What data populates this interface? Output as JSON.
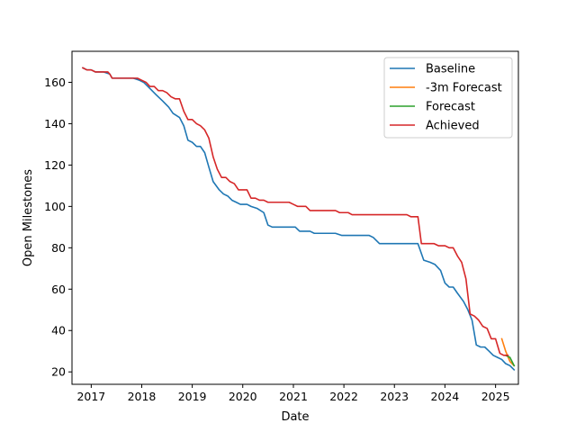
{
  "chart_data": {
    "type": "line",
    "xlabel": "Date",
    "ylabel": "Open Milestones",
    "xlim": [
      "2016-08-15",
      "2025-06-15"
    ],
    "ylim": [
      14,
      175
    ],
    "x_ticks": [
      "2017",
      "2018",
      "2019",
      "2020",
      "2021",
      "2022",
      "2023",
      "2024",
      "2025"
    ],
    "y_ticks": [
      20,
      40,
      60,
      80,
      100,
      120,
      140,
      160
    ],
    "grid": false,
    "legend_position": "top-right",
    "series": [
      {
        "name": "Baseline",
        "color": "#1f77b4",
        "points": [
          [
            "2016-11-01",
            167
          ],
          [
            "2016-12-01",
            166
          ],
          [
            "2017-01-01",
            166
          ],
          [
            "2017-02-01",
            165
          ],
          [
            "2017-04-01",
            165
          ],
          [
            "2017-05-15",
            164
          ],
          [
            "2017-06-01",
            162
          ],
          [
            "2017-08-01",
            162
          ],
          [
            "2017-09-15",
            162
          ],
          [
            "2017-11-01",
            162
          ],
          [
            "2017-12-15",
            161
          ],
          [
            "2018-01-15",
            160
          ],
          [
            "2018-03-01",
            157
          ],
          [
            "2018-04-15",
            154
          ],
          [
            "2018-06-01",
            151
          ],
          [
            "2018-07-15",
            148
          ],
          [
            "2018-08-15",
            145
          ],
          [
            "2018-10-01",
            143
          ],
          [
            "2018-11-01",
            139
          ],
          [
            "2018-12-01",
            132
          ],
          [
            "2019-01-01",
            131
          ],
          [
            "2019-02-01",
            129
          ],
          [
            "2019-03-01",
            129
          ],
          [
            "2019-04-01",
            126
          ],
          [
            "2019-05-01",
            119
          ],
          [
            "2019-06-01",
            112
          ],
          [
            "2019-07-15",
            108
          ],
          [
            "2019-08-15",
            106
          ],
          [
            "2019-09-15",
            105
          ],
          [
            "2019-10-15",
            103
          ],
          [
            "2019-11-15",
            102
          ],
          [
            "2019-12-15",
            101
          ],
          [
            "2020-02-01",
            101
          ],
          [
            "2020-03-01",
            100
          ],
          [
            "2020-04-15",
            99
          ],
          [
            "2020-06-01",
            97
          ],
          [
            "2020-07-01",
            91
          ],
          [
            "2020-08-01",
            90
          ],
          [
            "2020-10-01",
            90
          ],
          [
            "2020-12-01",
            90
          ],
          [
            "2021-01-15",
            90
          ],
          [
            "2021-02-15",
            88
          ],
          [
            "2021-05-01",
            88
          ],
          [
            "2021-06-01",
            87
          ],
          [
            "2021-09-01",
            87
          ],
          [
            "2021-11-01",
            87
          ],
          [
            "2021-12-15",
            86
          ],
          [
            "2022-02-01",
            86
          ],
          [
            "2022-05-01",
            86
          ],
          [
            "2022-07-01",
            86
          ],
          [
            "2022-08-01",
            85
          ],
          [
            "2022-09-15",
            82
          ],
          [
            "2022-12-01",
            82
          ],
          [
            "2023-03-01",
            82
          ],
          [
            "2023-06-01",
            82
          ],
          [
            "2023-06-20",
            82
          ],
          [
            "2023-08-01",
            74
          ],
          [
            "2023-09-15",
            73
          ],
          [
            "2023-10-20",
            72
          ],
          [
            "2023-12-01",
            69
          ],
          [
            "2024-01-01",
            63
          ],
          [
            "2024-02-01",
            61
          ],
          [
            "2024-03-01",
            61
          ],
          [
            "2024-04-01",
            58
          ],
          [
            "2024-05-15",
            54
          ],
          [
            "2024-06-15",
            50
          ],
          [
            "2024-07-15",
            45
          ],
          [
            "2024-08-15",
            33
          ],
          [
            "2024-09-15",
            32
          ],
          [
            "2024-10-15",
            32
          ],
          [
            "2024-11-15",
            30
          ],
          [
            "2024-12-15",
            28
          ],
          [
            "2025-01-15",
            27
          ],
          [
            "2025-02-15",
            26
          ],
          [
            "2025-03-15",
            24
          ],
          [
            "2025-04-15",
            23
          ],
          [
            "2025-05-15",
            21
          ]
        ]
      },
      {
        "name": "-3m Forecast",
        "color": "#ff7f0e",
        "points": [
          [
            "2025-02-15",
            36
          ],
          [
            "2025-03-15",
            30
          ],
          [
            "2025-04-15",
            25
          ],
          [
            "2025-05-15",
            23
          ]
        ]
      },
      {
        "name": "Forecast",
        "color": "#2ca02c",
        "points": [
          [
            "2025-03-15",
            28
          ],
          [
            "2025-04-15",
            27
          ],
          [
            "2025-05-15",
            23
          ]
        ]
      },
      {
        "name": "Achieved",
        "color": "#d62728",
        "points": [
          [
            "2016-11-01",
            167
          ],
          [
            "2016-12-01",
            166
          ],
          [
            "2017-01-01",
            166
          ],
          [
            "2017-02-01",
            165
          ],
          [
            "2017-04-01",
            165
          ],
          [
            "2017-05-01",
            165
          ],
          [
            "2017-05-15",
            164
          ],
          [
            "2017-06-01",
            162
          ],
          [
            "2017-08-01",
            162
          ],
          [
            "2017-11-01",
            162
          ],
          [
            "2017-12-01",
            162
          ],
          [
            "2018-01-01",
            161
          ],
          [
            "2018-02-01",
            160
          ],
          [
            "2018-03-01",
            158
          ],
          [
            "2018-04-01",
            158
          ],
          [
            "2018-05-01",
            156
          ],
          [
            "2018-06-01",
            156
          ],
          [
            "2018-07-01",
            155
          ],
          [
            "2018-08-01",
            153
          ],
          [
            "2018-09-01",
            152
          ],
          [
            "2018-10-01",
            152
          ],
          [
            "2018-11-01",
            146
          ],
          [
            "2018-12-01",
            142
          ],
          [
            "2019-01-01",
            142
          ],
          [
            "2019-02-01",
            140
          ],
          [
            "2019-03-01",
            139
          ],
          [
            "2019-04-01",
            137
          ],
          [
            "2019-05-01",
            133
          ],
          [
            "2019-06-01",
            124
          ],
          [
            "2019-07-01",
            118
          ],
          [
            "2019-08-01",
            114
          ],
          [
            "2019-09-01",
            114
          ],
          [
            "2019-10-01",
            112
          ],
          [
            "2019-11-01",
            111
          ],
          [
            "2019-12-01",
            108
          ],
          [
            "2020-01-01",
            108
          ],
          [
            "2020-02-01",
            108
          ],
          [
            "2020-03-01",
            104
          ],
          [
            "2020-04-01",
            104
          ],
          [
            "2020-05-01",
            103
          ],
          [
            "2020-06-01",
            103
          ],
          [
            "2020-07-01",
            102
          ],
          [
            "2020-08-01",
            102
          ],
          [
            "2020-10-01",
            102
          ],
          [
            "2020-12-01",
            102
          ],
          [
            "2021-01-01",
            101
          ],
          [
            "2021-02-01",
            100
          ],
          [
            "2021-04-01",
            100
          ],
          [
            "2021-05-01",
            98
          ],
          [
            "2021-07-01",
            98
          ],
          [
            "2021-09-01",
            98
          ],
          [
            "2021-11-01",
            98
          ],
          [
            "2021-12-01",
            97
          ],
          [
            "2022-02-01",
            97
          ],
          [
            "2022-03-01",
            96
          ],
          [
            "2022-06-01",
            96
          ],
          [
            "2022-10-01",
            96
          ],
          [
            "2023-01-01",
            96
          ],
          [
            "2023-04-01",
            96
          ],
          [
            "2023-05-01",
            95
          ],
          [
            "2023-06-01",
            95
          ],
          [
            "2023-06-20",
            95
          ],
          [
            "2023-07-15",
            82
          ],
          [
            "2023-09-01",
            82
          ],
          [
            "2023-10-15",
            82
          ],
          [
            "2023-11-15",
            81
          ],
          [
            "2024-01-01",
            81
          ],
          [
            "2024-02-01",
            80
          ],
          [
            "2024-03-01",
            80
          ],
          [
            "2024-04-01",
            76
          ],
          [
            "2024-05-01",
            73
          ],
          [
            "2024-06-01",
            65
          ],
          [
            "2024-07-01",
            48
          ],
          [
            "2024-08-01",
            47
          ],
          [
            "2024-09-01",
            45
          ],
          [
            "2024-10-01",
            42
          ],
          [
            "2024-11-01",
            41
          ],
          [
            "2024-12-01",
            36
          ],
          [
            "2025-01-01",
            36
          ],
          [
            "2025-02-01",
            29
          ],
          [
            "2025-03-01",
            28
          ],
          [
            "2025-04-01",
            28
          ]
        ]
      }
    ]
  }
}
